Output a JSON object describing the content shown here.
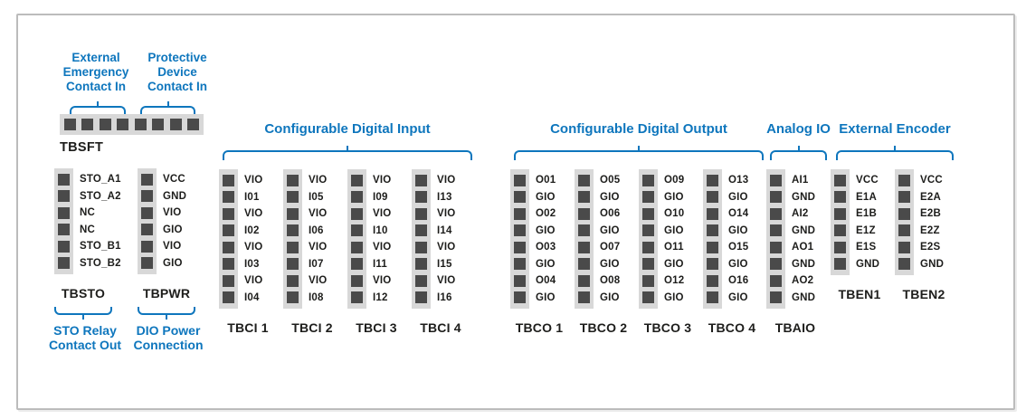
{
  "colors": {
    "accent_blue": "#0e76bd",
    "text_black": "#1d1d1b",
    "strip_gray": "#d8d8d8",
    "pin_gray": "#4a4a4a",
    "frame_border": "#bcbcbc",
    "background": "#ffffff"
  },
  "tbsft": {
    "label": "TBSFT",
    "pin_count": 8,
    "annotations": [
      {
        "lines": [
          "External",
          "Emergency",
          "Contact In"
        ]
      },
      {
        "lines": [
          "Protective",
          "Device",
          "Contact In"
        ]
      }
    ]
  },
  "left_blocks": [
    {
      "label": "TBSTO",
      "pins": [
        "STO_A1",
        "STO_A2",
        "NC",
        "NC",
        "STO_B1",
        "STO_B2"
      ],
      "caption_lines": [
        "STO Relay",
        "Contact Out"
      ]
    },
    {
      "label": "TBPWR",
      "pins": [
        "VCC",
        "GND",
        "VIO",
        "GIO",
        "VIO",
        "GIO"
      ],
      "caption_lines": [
        "DIO Power",
        "Connection"
      ]
    }
  ],
  "groups": [
    {
      "header": "Configurable Digital Input",
      "blocks": [
        {
          "label": "TBCI 1",
          "pins": [
            "VIO",
            "I01",
            "VIO",
            "I02",
            "VIO",
            "I03",
            "VIO",
            "I04"
          ]
        },
        {
          "label": "TBCI 2",
          "pins": [
            "VIO",
            "I05",
            "VIO",
            "I06",
            "VIO",
            "I07",
            "VIO",
            "I08"
          ]
        },
        {
          "label": "TBCI 3",
          "pins": [
            "VIO",
            "I09",
            "VIO",
            "I10",
            "VIO",
            "I11",
            "VIO",
            "I12"
          ]
        },
        {
          "label": "TBCI 4",
          "pins": [
            "VIO",
            "I13",
            "VIO",
            "I14",
            "VIO",
            "I15",
            "VIO",
            "I16"
          ]
        }
      ]
    },
    {
      "header": "Configurable Digital Output",
      "blocks": [
        {
          "label": "TBCO 1",
          "pins": [
            "O01",
            "GIO",
            "O02",
            "GIO",
            "O03",
            "GIO",
            "O04",
            "GIO"
          ]
        },
        {
          "label": "TBCO 2",
          "pins": [
            "O05",
            "GIO",
            "O06",
            "GIO",
            "O07",
            "GIO",
            "O08",
            "GIO"
          ]
        },
        {
          "label": "TBCO 3",
          "pins": [
            "O09",
            "GIO",
            "O10",
            "GIO",
            "O11",
            "GIO",
            "O12",
            "GIO"
          ]
        },
        {
          "label": "TBCO 4",
          "pins": [
            "O13",
            "GIO",
            "O14",
            "GIO",
            "O15",
            "GIO",
            "O16",
            "GIO"
          ]
        }
      ]
    },
    {
      "header": "Analog IO",
      "blocks": [
        {
          "label": "TBAIO",
          "pins": [
            "AI1",
            "GND",
            "AI2",
            "GND",
            "AO1",
            "GND",
            "AO2",
            "GND"
          ]
        }
      ]
    },
    {
      "header": "External Encoder",
      "blocks": [
        {
          "label": "TBEN1",
          "pins": [
            "VCC",
            "E1A",
            "E1B",
            "E1Z",
            "E1S",
            "GND"
          ]
        },
        {
          "label": "TBEN2",
          "pins": [
            "VCC",
            "E2A",
            "E2B",
            "E2Z",
            "E2S",
            "GND"
          ]
        }
      ]
    }
  ]
}
